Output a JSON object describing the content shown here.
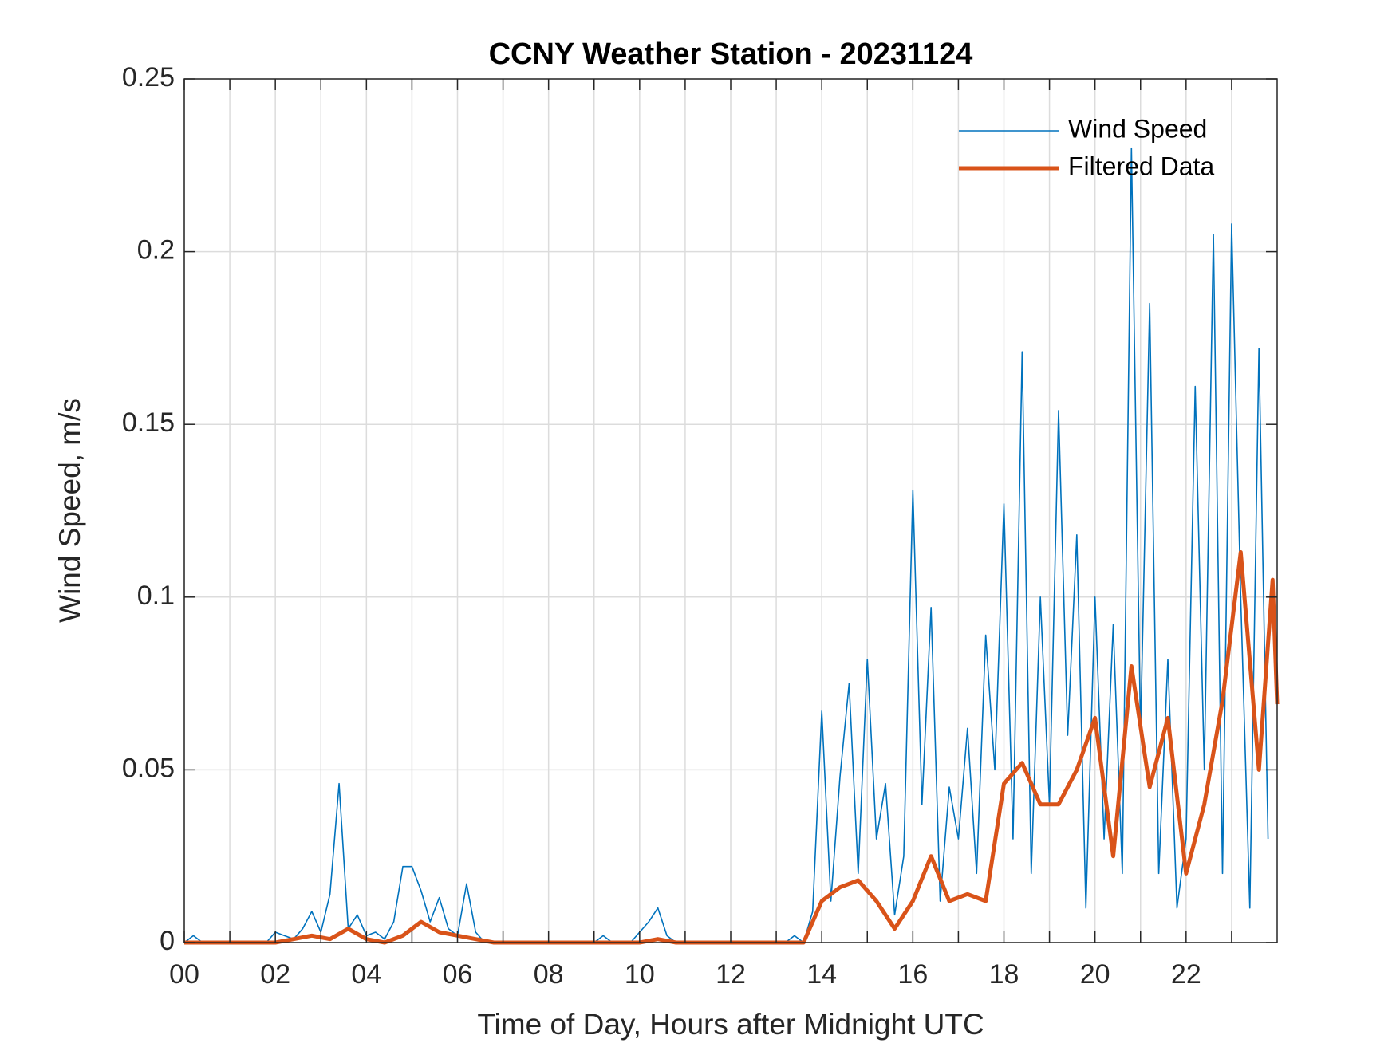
{
  "chart_data": {
    "type": "line",
    "title": "CCNY Weather Station - 20231124",
    "x_label": "Time of Day, Hours after Midnight UTC",
    "y_label": "Wind Speed, m/s",
    "xlim": [
      0,
      24
    ],
    "xticks": [
      {
        "value": 0,
        "label": "00"
      },
      {
        "value": 2,
        "label": "02"
      },
      {
        "value": 4,
        "label": "04"
      },
      {
        "value": 6,
        "label": "06"
      },
      {
        "value": 8,
        "label": "08"
      },
      {
        "value": 10,
        "label": "10"
      },
      {
        "value": 12,
        "label": "12"
      },
      {
        "value": 14,
        "label": "14"
      },
      {
        "value": 16,
        "label": "16"
      },
      {
        "value": 18,
        "label": "18"
      },
      {
        "value": 20,
        "label": "20"
      },
      {
        "value": 22,
        "label": "22"
      }
    ],
    "xminorticks": [
      1,
      3,
      5,
      7,
      9,
      11,
      13,
      15,
      17,
      19,
      21,
      23
    ],
    "ylim": [
      0,
      0.25
    ],
    "yticks": [
      0,
      0.05,
      0.1,
      0.15,
      0.2,
      0.25
    ],
    "grid": true,
    "legend_location": "northeast",
    "series": [
      {
        "name": "Wind Speed",
        "color": "#0072BD",
        "x": [
          0,
          0.2,
          0.4,
          0.6,
          0.8,
          1,
          1.2,
          1.4,
          1.6,
          1.8,
          2,
          2.2,
          2.4,
          2.6,
          2.8,
          3,
          3.2,
          3.4,
          3.6,
          3.8,
          4,
          4.2,
          4.4,
          4.6,
          4.8,
          5,
          5.2,
          5.4,
          5.6,
          5.8,
          6,
          6.2,
          6.4,
          6.6,
          6.8,
          7,
          7.2,
          7.4,
          7.6,
          7.8,
          8,
          8.2,
          8.4,
          8.6,
          8.8,
          9,
          9.2,
          9.4,
          9.6,
          9.8,
          10,
          10.2,
          10.4,
          10.6,
          10.8,
          11,
          11.2,
          11.4,
          11.6,
          11.8,
          12,
          12.2,
          12.4,
          12.6,
          12.8,
          13,
          13.2,
          13.4,
          13.6,
          13.8,
          14,
          14.2,
          14.4,
          14.6,
          14.8,
          15,
          15.2,
          15.4,
          15.6,
          15.8,
          16,
          16.2,
          16.4,
          16.6,
          16.8,
          17,
          17.2,
          17.4,
          17.6,
          17.8,
          18,
          18.2,
          18.4,
          18.6,
          18.8,
          19,
          19.2,
          19.4,
          19.6,
          19.8,
          20,
          20.2,
          20.4,
          20.6,
          20.8,
          21,
          21.2,
          21.4,
          21.6,
          21.8,
          22,
          22.2,
          22.4,
          22.6,
          22.8,
          23,
          23.2,
          23.4,
          23.6,
          23.8
        ],
        "values": [
          0,
          0.002,
          0,
          0,
          0,
          0,
          0,
          0,
          0,
          0,
          0.003,
          0.002,
          0.001,
          0.004,
          0.009,
          0.003,
          0.014,
          0.046,
          0.004,
          0.008,
          0.002,
          0.003,
          0.001,
          0.006,
          0.022,
          0.022,
          0.015,
          0.006,
          0.013,
          0.004,
          0.002,
          0.017,
          0.003,
          0,
          0,
          0,
          0,
          0,
          0,
          0,
          0,
          0,
          0,
          0,
          0,
          0,
          0.002,
          0,
          0,
          0,
          0.003,
          0.006,
          0.01,
          0.002,
          0,
          0,
          0,
          0,
          0,
          0,
          0,
          0,
          0,
          0,
          0,
          0,
          0,
          0.002,
          0,
          0.009,
          0.067,
          0.012,
          0.048,
          0.075,
          0.02,
          0.082,
          0.03,
          0.046,
          0.008,
          0.025,
          0.131,
          0.04,
          0.097,
          0.012,
          0.045,
          0.03,
          0.062,
          0.02,
          0.089,
          0.05,
          0.127,
          0.03,
          0.171,
          0.02,
          0.1,
          0.04,
          0.154,
          0.06,
          0.118,
          0.01,
          0.1,
          0.03,
          0.092,
          0.02,
          0.23,
          0.06,
          0.185,
          0.02,
          0.082,
          0.01,
          0.03,
          0.161,
          0.05,
          0.205,
          0.02,
          0.208,
          0.1,
          0.01,
          0.172,
          0.03
        ]
      },
      {
        "name": "Filtered Data",
        "color": "#D95319",
        "x": [
          0,
          0.4,
          0.8,
          1.2,
          1.6,
          2,
          2.4,
          2.8,
          3.2,
          3.6,
          4,
          4.4,
          4.8,
          5.2,
          5.6,
          6,
          6.4,
          6.8,
          7.2,
          7.6,
          8,
          8.4,
          8.8,
          9.2,
          9.6,
          10,
          10.4,
          10.8,
          11.2,
          11.6,
          12,
          12.4,
          12.8,
          13.2,
          13.6,
          14,
          14.4,
          14.8,
          15.2,
          15.6,
          16,
          16.4,
          16.8,
          17.2,
          17.6,
          18,
          18.4,
          18.8,
          19.2,
          19.6,
          20,
          20.4,
          20.8,
          21.2,
          21.6,
          22,
          22.4,
          22.8,
          23.2,
          23.6,
          23.9,
          24
        ],
        "values": [
          0,
          0,
          0,
          0,
          0,
          0,
          0.001,
          0.002,
          0.001,
          0.004,
          0.001,
          0,
          0.002,
          0.006,
          0.003,
          0.002,
          0.001,
          0,
          0,
          0,
          0,
          0,
          0,
          0,
          0,
          0,
          0.001,
          0,
          0,
          0,
          0,
          0,
          0,
          0,
          0,
          0.012,
          0.016,
          0.018,
          0.012,
          0.004,
          0.012,
          0.025,
          0.012,
          0.014,
          0.012,
          0.046,
          0.052,
          0.04,
          0.04,
          0.05,
          0.065,
          0.025,
          0.08,
          0.045,
          0.065,
          0.02,
          0.04,
          0.07,
          0.113,
          0.05,
          0.105,
          0.069
        ]
      }
    ]
  }
}
